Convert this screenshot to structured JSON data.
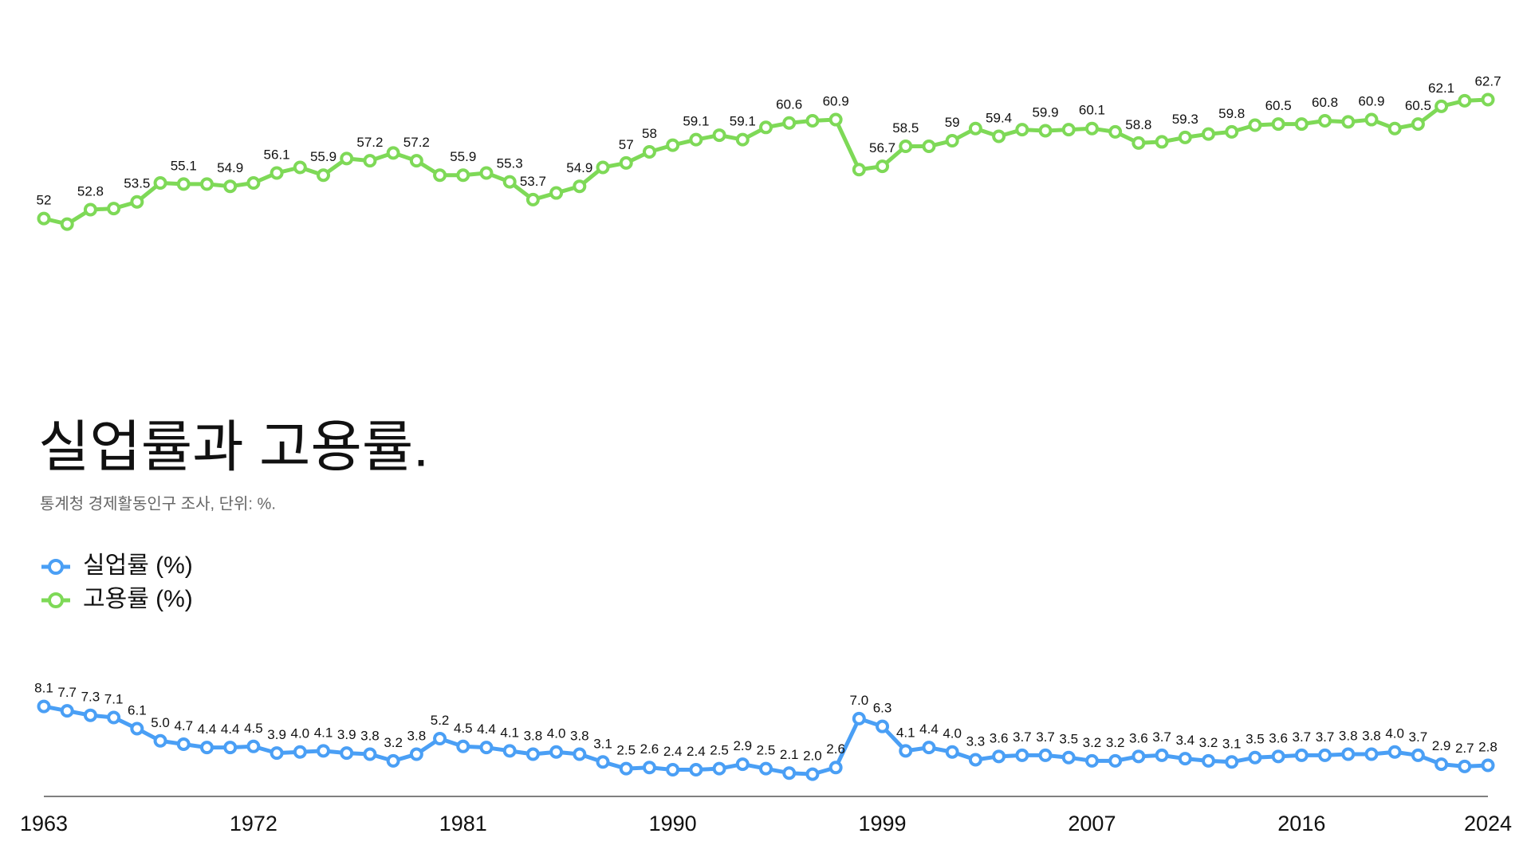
{
  "chart_data": {
    "type": "line",
    "title": "실업률과 고용률.",
    "subtitle": "통계청 경제활동인구 조사, 단위: %.",
    "legend": "left",
    "ylim": [
      0,
      65
    ],
    "categories": [
      "1963",
      null,
      null,
      null,
      null,
      null,
      null,
      null,
      null,
      "1972",
      null,
      null,
      null,
      null,
      null,
      null,
      null,
      null,
      "1981",
      null,
      null,
      null,
      null,
      null,
      null,
      null,
      null,
      "1990",
      null,
      null,
      null,
      null,
      null,
      null,
      null,
      null,
      "1999",
      null,
      null,
      null,
      null,
      null,
      null,
      null,
      null,
      "2007",
      null,
      null,
      null,
      null,
      null,
      null,
      null,
      null,
      "2016",
      null,
      null,
      null,
      null,
      null,
      null,
      null,
      "2024"
    ],
    "series": [
      {
        "name": "실업률 (%)",
        "color": "#4a9ff5",
        "values": [
          8.1,
          7.7,
          7.3,
          7.1,
          6.1,
          5.0,
          4.7,
          4.4,
          4.4,
          4.5,
          3.9,
          4.0,
          4.1,
          3.9,
          3.8,
          3.2,
          3.8,
          5.2,
          4.5,
          4.4,
          4.1,
          3.8,
          4.0,
          3.8,
          3.1,
          2.5,
          2.6,
          2.4,
          2.4,
          2.5,
          2.9,
          2.5,
          2.1,
          2.0,
          2.6,
          7.0,
          6.3,
          4.1,
          4.4,
          4.0,
          3.3,
          3.6,
          3.7,
          3.7,
          3.5,
          3.2,
          3.2,
          3.6,
          3.7,
          3.4,
          3.2,
          3.1,
          3.5,
          3.6,
          3.7,
          3.7,
          3.8,
          3.8,
          4.0,
          3.7,
          2.9,
          2.7,
          2.8
        ],
        "value_labels": [
          "8.1",
          "7.7",
          "7.3",
          "7.1",
          "6.1",
          "5.0",
          "4.7",
          "4.4",
          "4.4",
          "4.5",
          "3.9",
          "4.0",
          "4.1",
          "3.9",
          "3.8",
          "3.2",
          "3.8",
          "5.2",
          "4.5",
          "4.4",
          "4.1",
          "3.8",
          "4.0",
          "3.8",
          "3.1",
          "2.5",
          "2.6",
          "2.4",
          "2.4",
          "2.5",
          "2.9",
          "2.5",
          "2.1",
          "2.0",
          "2.6",
          "7.0",
          "6.3",
          "4.1",
          "4.4",
          "4.0",
          "3.3",
          "3.6",
          "3.7",
          "3.7",
          "3.5",
          "3.2",
          "3.2",
          "3.6",
          "3.7",
          "3.4",
          "3.2",
          "3.1",
          "3.5",
          "3.6",
          "3.7",
          "3.7",
          "3.8",
          "3.8",
          "4.0",
          "3.7",
          "2.9",
          "2.7",
          "2.8"
        ]
      },
      {
        "name": "고용률 (%)",
        "color": "#7ed957",
        "values": [
          52,
          51.5,
          52.8,
          52.9,
          53.5,
          55.2,
          55.1,
          55.1,
          54.9,
          55.2,
          56.1,
          56.6,
          55.9,
          57.4,
          57.2,
          57.9,
          57.2,
          55.9,
          55.9,
          56.1,
          55.3,
          53.7,
          54.3,
          54.9,
          56.6,
          57,
          58,
          58.6,
          59.1,
          59.5,
          59.1,
          60.2,
          60.6,
          60.8,
          60.9,
          56.4,
          56.7,
          58.5,
          58.5,
          59,
          60.1,
          59.4,
          60.0,
          59.9,
          60.0,
          60.1,
          59.8,
          58.8,
          58.9,
          59.3,
          59.6,
          59.8,
          60.4,
          60.5,
          60.5,
          60.8,
          60.7,
          60.9,
          60.1,
          60.5,
          62.1,
          62.6,
          62.7
        ],
        "value_labels": [
          "52",
          null,
          "52.8",
          null,
          "53.5",
          null,
          "55.1",
          null,
          "54.9",
          null,
          "56.1",
          null,
          "55.9",
          null,
          "57.2",
          null,
          "57.2",
          null,
          "55.9",
          null,
          "55.3",
          "53.7",
          null,
          "54.9",
          null,
          "57",
          "58",
          null,
          "59.1",
          null,
          "59.1",
          null,
          "60.6",
          null,
          "60.9",
          null,
          "56.7",
          "58.5",
          null,
          "59",
          null,
          "59.4",
          null,
          "59.9",
          null,
          "60.1",
          null,
          "58.8",
          null,
          "59.3",
          null,
          "59.8",
          null,
          "60.5",
          null,
          "60.8",
          null,
          "60.9",
          null,
          "60.5",
          "62.1",
          null,
          "62.7"
        ]
      }
    ]
  }
}
